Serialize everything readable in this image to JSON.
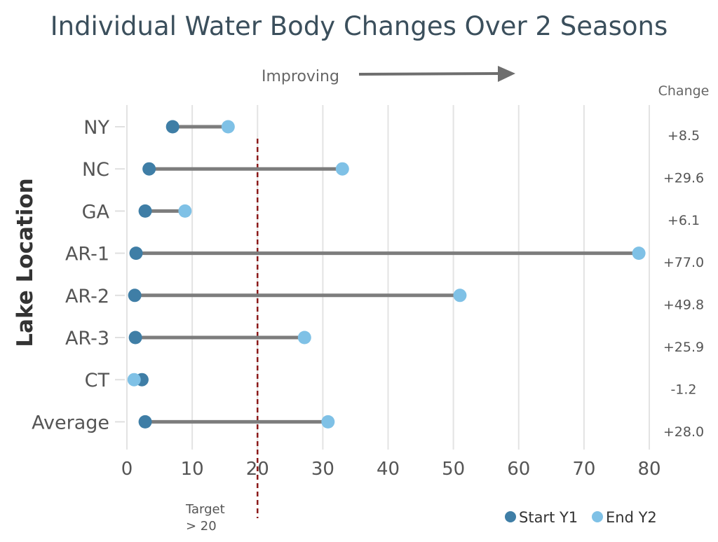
{
  "chart_data": {
    "type": "dumbbell",
    "title": "Individual Water Body Changes Over 2 Seasons",
    "ylabel": "Lake Location",
    "xlim": [
      0,
      80
    ],
    "xticks": [
      0,
      10,
      20,
      30,
      40,
      50,
      60,
      70,
      80
    ],
    "grid": true,
    "categories": [
      "NY",
      "NC",
      "GA",
      "AR-1",
      "AR-2",
      "AR-3",
      "CT",
      "Average"
    ],
    "series": [
      {
        "name": "Start Y1",
        "color": "#3f7ea6",
        "values": [
          7.0,
          3.4,
          2.8,
          1.4,
          1.2,
          1.3,
          2.3,
          2.8
        ]
      },
      {
        "name": "End Y2",
        "color": "#7fc1e6",
        "values": [
          15.5,
          33.0,
          8.9,
          78.4,
          51.0,
          27.2,
          1.1,
          30.8
        ]
      }
    ],
    "change_header": "Change",
    "changes": [
      "+8.5",
      "+29.6",
      "+6.1",
      "+77.0",
      "+49.8",
      "+25.9",
      "-1.2",
      "+28.0"
    ],
    "annotation": "Improving",
    "target": {
      "value": 20,
      "label_line1": "Target",
      "label_line2": "> 20",
      "color": "#8b1a1a"
    },
    "legend_position": "bottom-right"
  }
}
